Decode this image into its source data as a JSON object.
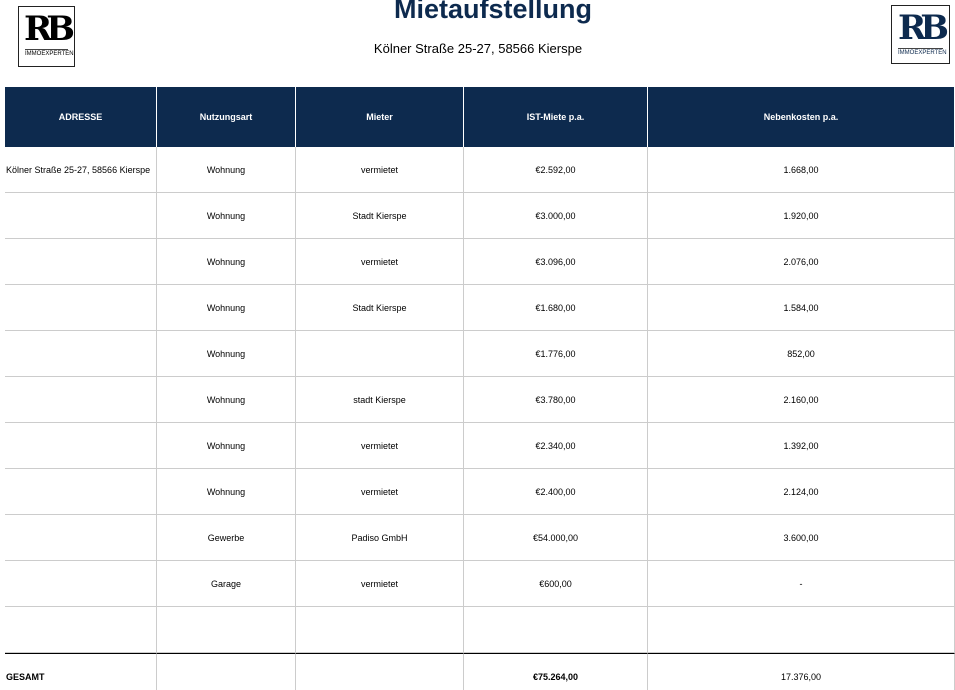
{
  "header": {
    "title": "Mietaufstellung",
    "subtitle": "Kölner Straße 25-27, 58566 Kierspe"
  },
  "logos": [
    {
      "mark": "RB",
      "text": "IMMOEXPERTEN"
    },
    {
      "mark": "RB",
      "text": "IMMOEXPERTEN"
    }
  ],
  "table": {
    "columns": [
      "ADRESSE",
      "Nutzungsart",
      "Mieter",
      "IST-Miete p.a.",
      "Nebenkosten p.a."
    ],
    "rows": [
      [
        "Kölner Straße 25-27, 58566 Kierspe",
        "Wohnung",
        "vermietet",
        "€2.592,00",
        "1.668,00"
      ],
      [
        null,
        "Wohnung",
        "Stadt Kierspe",
        "€3.000,00",
        "1.920,00"
      ],
      [
        null,
        "Wohnung",
        "vermietet",
        "€3.096,00",
        "2.076,00"
      ],
      [
        null,
        "Wohnung",
        "Stadt Kierspe",
        "€1.680,00",
        "1.584,00"
      ],
      [
        null,
        "Wohnung",
        null,
        "€1.776,00",
        "852,00"
      ],
      [
        null,
        "Wohnung",
        "stadt Kierspe",
        "€3.780,00",
        "2.160,00"
      ],
      [
        null,
        "Wohnung",
        "vermietet",
        "€2.340,00",
        "1.392,00"
      ],
      [
        null,
        "Wohnung",
        "vermietet",
        "€2.400,00",
        "2.124,00"
      ],
      [
        null,
        "Gewerbe",
        "Padiso GmbH",
        "€54.000,00",
        "3.600,00"
      ],
      [
        null,
        "Garage",
        "vermietet",
        "€600,00",
        "-"
      ],
      [
        null,
        null,
        null,
        null,
        null
      ]
    ],
    "total": [
      "GESAMT",
      null,
      null,
      "€75.264,00",
      "17.376,00"
    ]
  }
}
